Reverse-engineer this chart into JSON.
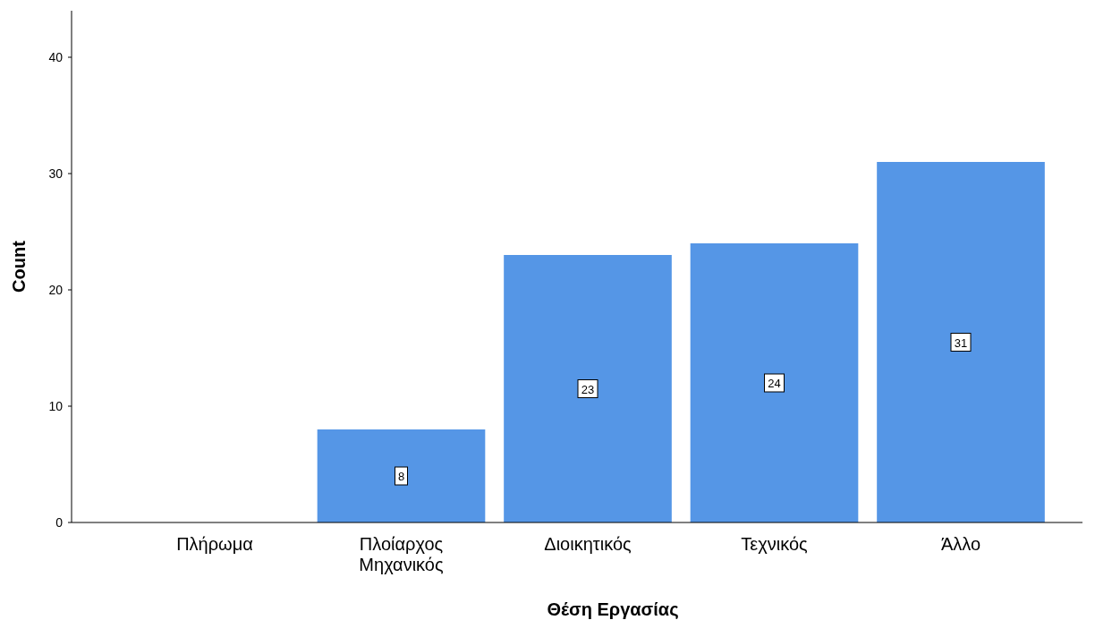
{
  "chart_data": {
    "type": "bar",
    "xlabel": "Θέση Εργασίας",
    "ylabel": "Count",
    "categories": [
      "Πλήρωμα",
      "Πλοίαρχος\nΜηχανικός",
      "Διοικητικός",
      "Τεχνικός",
      "Άλλο"
    ],
    "values": [
      0,
      8,
      23,
      24,
      31
    ],
    "value_labels": [
      null,
      "8",
      "23",
      "24",
      "31"
    ],
    "color": "#5596e6",
    "ylim": [
      0,
      44
    ],
    "yticks": [
      0,
      10,
      20,
      30,
      40
    ],
    "grid": false
  }
}
